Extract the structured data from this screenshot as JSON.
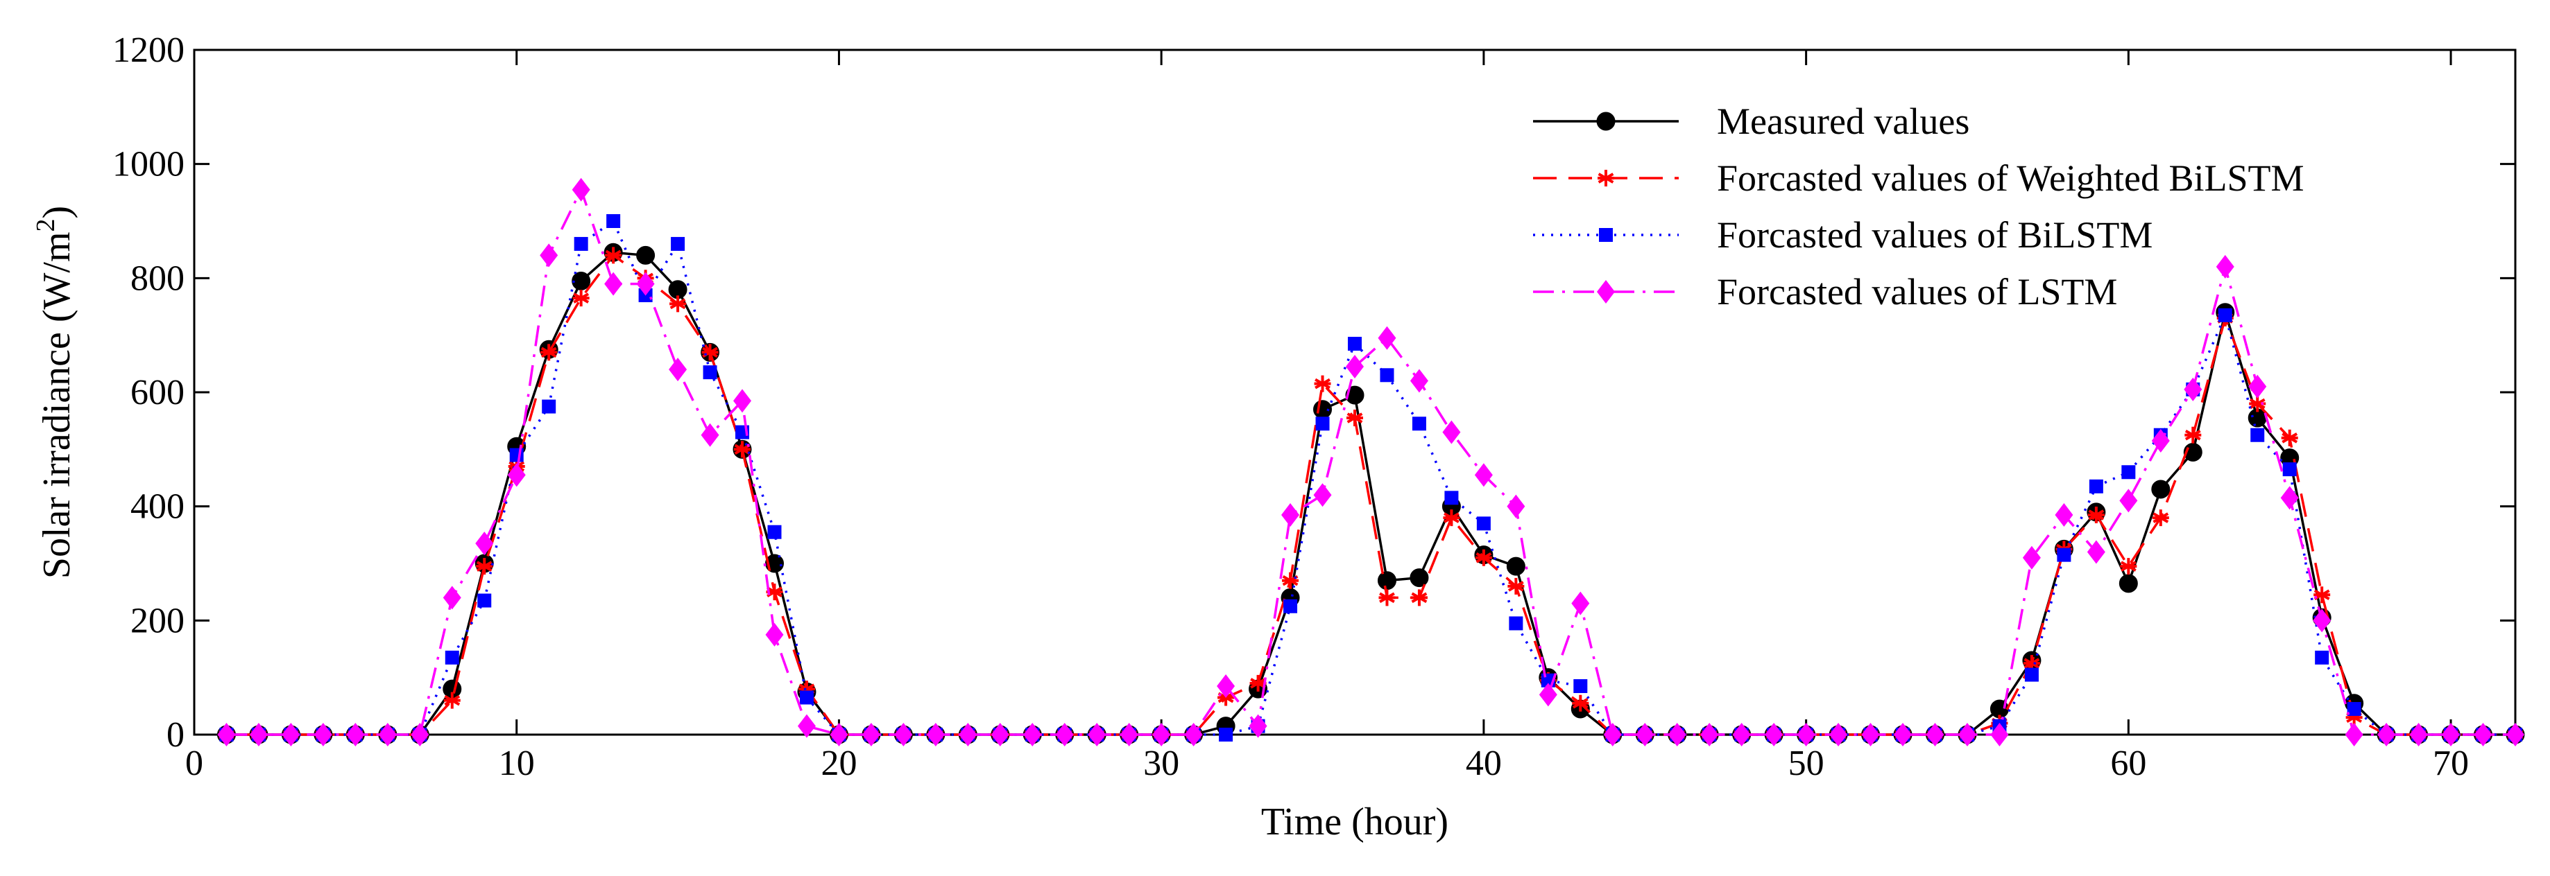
{
  "chart_data": {
    "type": "line",
    "xlabel": "Time (hour)",
    "ylabel_prefix": "Solar irradiance (W/m",
    "ylabel_sup": "2",
    "ylabel_suffix": ")",
    "xlim": [
      0,
      72
    ],
    "ylim": [
      0,
      1200
    ],
    "xticks": [
      0,
      10,
      20,
      30,
      40,
      50,
      60,
      70
    ],
    "xtick_labels": [
      "0",
      "10",
      "20",
      "30",
      "40",
      "50",
      "60",
      "70"
    ],
    "yticks": [
      0,
      200,
      400,
      600,
      800,
      1000,
      1200
    ],
    "ytick_labels": [
      "0",
      "200",
      "400",
      "600",
      "800",
      "1000",
      "1200"
    ],
    "grid": false,
    "legend_position": "top-right",
    "x": [
      1,
      2,
      3,
      4,
      5,
      6,
      7,
      8,
      9,
      10,
      11,
      12,
      13,
      14,
      15,
      16,
      17,
      18,
      19,
      20,
      21,
      22,
      23,
      24,
      25,
      26,
      27,
      28,
      29,
      30,
      31,
      32,
      33,
      34,
      35,
      36,
      37,
      38,
      39,
      40,
      41,
      42,
      43,
      44,
      45,
      46,
      47,
      48,
      49,
      50,
      51,
      52,
      53,
      54,
      55,
      56,
      57,
      58,
      59,
      60,
      61,
      62,
      63,
      64,
      65,
      66,
      67,
      68,
      69,
      70,
      71,
      72
    ],
    "series": [
      {
        "name": "Measured values",
        "color": "#000000",
        "dash": "solid",
        "marker": "circle",
        "values": [
          0,
          0,
          0,
          0,
          0,
          0,
          0,
          80,
          300,
          505,
          675,
          795,
          845,
          840,
          780,
          670,
          500,
          300,
          75,
          0,
          0,
          0,
          0,
          0,
          0,
          0,
          0,
          0,
          0,
          0,
          0,
          15,
          80,
          240,
          570,
          595,
          270,
          275,
          400,
          315,
          295,
          100,
          45,
          0,
          0,
          0,
          0,
          0,
          0,
          0,
          0,
          0,
          0,
          0,
          0,
          45,
          130,
          325,
          390,
          265,
          430,
          495,
          740,
          555,
          485,
          205,
          55,
          0,
          0,
          0,
          0,
          0
        ]
      },
      {
        "name": "Forcasted values of Weighted BiLSTM",
        "color": "#ff0000",
        "dash": "dashed",
        "marker": "asterisk",
        "values": [
          0,
          0,
          0,
          0,
          0,
          0,
          0,
          60,
          295,
          470,
          670,
          765,
          840,
          800,
          755,
          670,
          500,
          250,
          80,
          0,
          0,
          0,
          0,
          0,
          0,
          0,
          0,
          0,
          0,
          0,
          0,
          65,
          90,
          270,
          615,
          555,
          240,
          240,
          380,
          310,
          260,
          95,
          55,
          0,
          0,
          0,
          0,
          0,
          0,
          0,
          0,
          0,
          0,
          0,
          0,
          20,
          125,
          325,
          385,
          295,
          380,
          525,
          730,
          580,
          520,
          245,
          30,
          0,
          0,
          0,
          0,
          0
        ]
      },
      {
        "name": "Forcasted values of BiLSTM",
        "color": "#0000ff",
        "dash": "dotted",
        "marker": "square",
        "values": [
          0,
          0,
          0,
          0,
          0,
          0,
          0,
          135,
          235,
          490,
          575,
          860,
          900,
          770,
          860,
          635,
          530,
          355,
          65,
          0,
          0,
          0,
          0,
          0,
          0,
          0,
          0,
          0,
          0,
          0,
          0,
          0,
          15,
          225,
          545,
          685,
          630,
          545,
          415,
          370,
          195,
          95,
          85,
          0,
          0,
          0,
          0,
          0,
          0,
          0,
          0,
          0,
          0,
          0,
          0,
          15,
          105,
          315,
          435,
          460,
          525,
          605,
          735,
          525,
          465,
          135,
          45,
          0,
          0,
          0,
          0,
          0
        ]
      },
      {
        "name": "Forcasted values of LSTM",
        "color": "#ff00ff",
        "dash": "dashdot",
        "marker": "diamond",
        "values": [
          0,
          0,
          0,
          0,
          0,
          0,
          0,
          240,
          335,
          455,
          840,
          955,
          790,
          790,
          640,
          525,
          585,
          175,
          15,
          0,
          0,
          0,
          0,
          0,
          0,
          0,
          0,
          0,
          0,
          0,
          0,
          85,
          15,
          385,
          420,
          645,
          695,
          620,
          530,
          455,
          400,
          70,
          230,
          0,
          0,
          0,
          0,
          0,
          0,
          0,
          0,
          0,
          0,
          0,
          0,
          0,
          310,
          385,
          320,
          410,
          515,
          605,
          820,
          610,
          415,
          200,
          0,
          0,
          0,
          0,
          0,
          0
        ]
      }
    ]
  }
}
